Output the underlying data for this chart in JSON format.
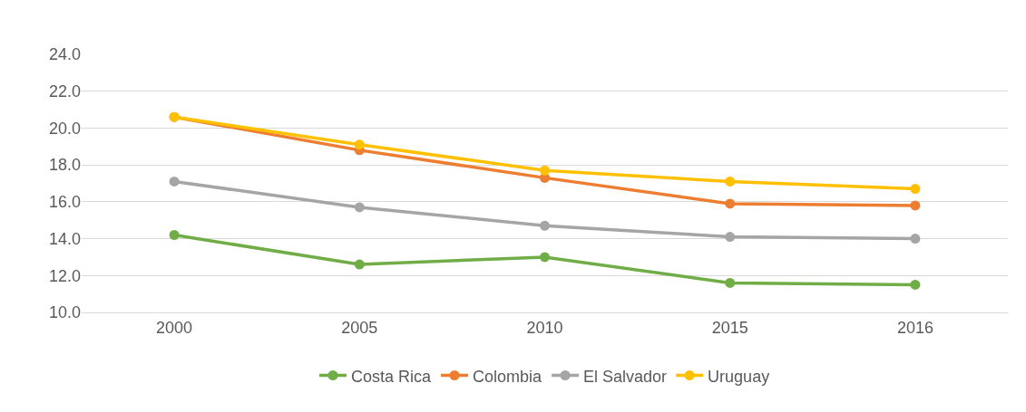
{
  "chart_data": {
    "type": "line",
    "categories": [
      "2000",
      "2005",
      "2010",
      "2015",
      "2016"
    ],
    "series": [
      {
        "name": "Costa Rica",
        "color": "#70ad47",
        "values": [
          14.2,
          12.6,
          13.0,
          11.6,
          11.5
        ]
      },
      {
        "name": "Colombia",
        "color": "#ed7d31",
        "values": [
          20.6,
          18.8,
          17.3,
          15.9,
          15.8
        ]
      },
      {
        "name": "El Salvador",
        "color": "#a5a5a5",
        "values": [
          17.1,
          15.7,
          14.7,
          14.1,
          14.0
        ]
      },
      {
        "name": "Uruguay",
        "color": "#ffc000",
        "values": [
          20.6,
          19.1,
          17.7,
          17.1,
          16.7
        ]
      }
    ],
    "ylim": [
      10,
      24
    ],
    "yticks": [
      {
        "value": 10,
        "label": "10.0"
      },
      {
        "value": 12,
        "label": "12.0"
      },
      {
        "value": 14,
        "label": "14.0"
      },
      {
        "value": 16,
        "label": "16.0"
      },
      {
        "value": 18,
        "label": "18.0"
      },
      {
        "value": 20,
        "label": "20.0"
      },
      {
        "value": 22,
        "label": "22.0"
      },
      {
        "value": 24,
        "label": "24.0"
      }
    ],
    "grid": "y",
    "legend": "bottom",
    "marker": "circle",
    "line_style": "solid"
  }
}
